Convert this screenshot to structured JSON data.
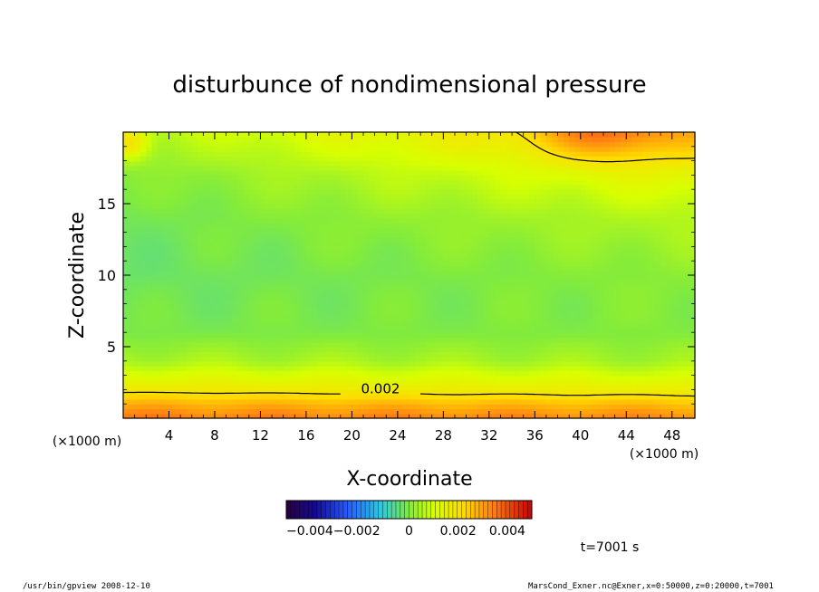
{
  "chart_data": {
    "type": "heatmap",
    "title": "disturbunce of nondimensional pressure",
    "xlabel": "X-coordinate",
    "ylabel": "Z-coordinate",
    "x_unit_left": "(×1000 m)",
    "x_unit_right": "(×1000 m)",
    "xlim": [
      0,
      50
    ],
    "ylim": [
      0,
      20
    ],
    "x_ticks": [
      "4",
      "8",
      "12",
      "16",
      "20",
      "24",
      "28",
      "32",
      "36",
      "40",
      "44",
      "48"
    ],
    "y_ticks": [
      "5",
      "10",
      "15"
    ],
    "contour_label": "0.002",
    "contour_level": 0.002,
    "colorbar": {
      "range": [
        -0.005,
        0.005
      ],
      "tick_labels": [
        "−0.004−0.002",
        "0",
        "0.002",
        "0.004"
      ]
    },
    "field_estimate": {
      "z": [
        0,
        1,
        2,
        4,
        6,
        10,
        14,
        17,
        20
      ],
      "profile_low_x": [
        0.0035,
        0.0028,
        0.0018,
        0.0005,
        -0.0001,
        -0.0003,
        -0.0002,
        0.0,
        0.0005
      ],
      "profile_high_x": [
        0.0033,
        0.0026,
        0.0016,
        0.0004,
        0.0,
        0.0001,
        0.0006,
        0.0014,
        0.0026
      ]
    }
  },
  "time_label": "t=7001 s",
  "footer_left": "/usr/bin/gpview   2008-12-10",
  "footer_right": "MarsCond_Exner.nc@Exner,x=0:50000,z=0:20000,t=7001"
}
